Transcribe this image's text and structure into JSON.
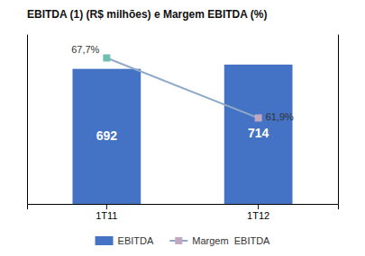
{
  "chart_data": {
    "type": "bar",
    "title": "EBITDA (1) (R$ milhões) e Margem EBITDA (%)",
    "categories": [
      "1T11",
      "1T12"
    ],
    "series": [
      {
        "name": "EBITDA",
        "type": "bar",
        "color": "#4472C4",
        "values": [
          692,
          714
        ]
      },
      {
        "name": "Margem  EBITDA",
        "type": "line",
        "axis": "y2",
        "color": "#8FA9C8",
        "colors": [
          "#70C0B0",
          "#C0A8C0"
        ],
        "marker": "square",
        "values": [
          67.7,
          61.9
        ],
        "value_labels": [
          "67,7%",
          "61,9%"
        ]
      }
    ],
    "ylim": [
      0,
      870
    ],
    "y2lim": [
      53.6,
      70.0
    ],
    "data_labels": true,
    "tick_labels": "x",
    "grid": false,
    "legend": "bottom"
  }
}
